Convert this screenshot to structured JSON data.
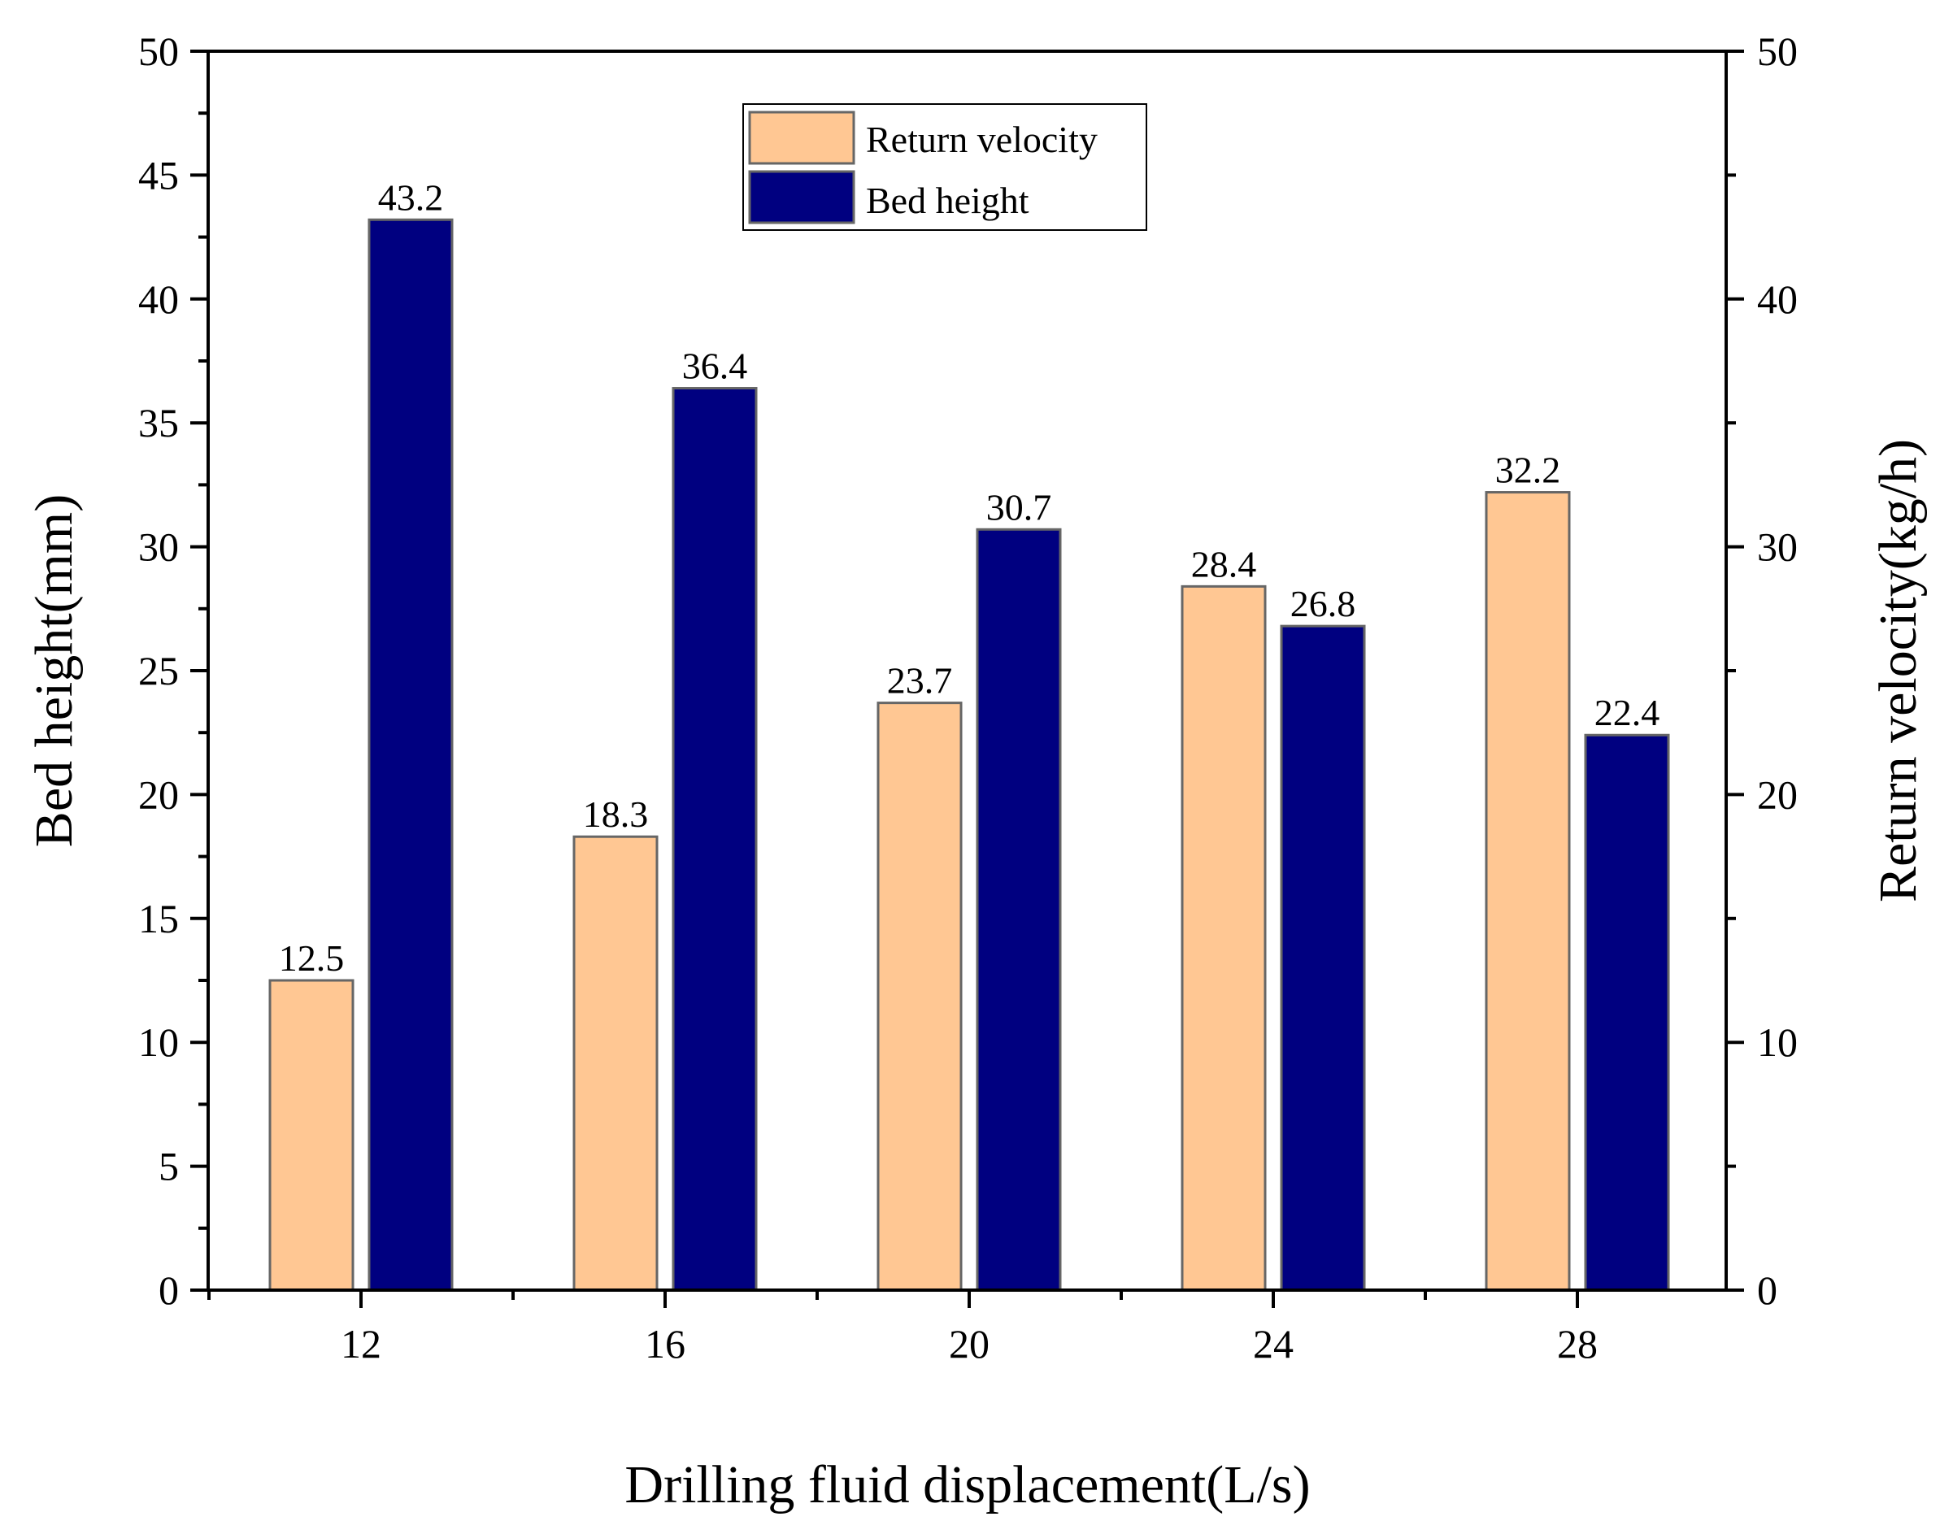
{
  "chart_data": {
    "type": "bar",
    "title": "",
    "xlabel": "Drilling fluid displacement(L/s)",
    "ylabel_left": "Bed height(mm)",
    "ylabel_right": "Return velocity(kg/h)",
    "categories": [
      "12",
      "16",
      "20",
      "24",
      "28"
    ],
    "ylim_left": [
      0,
      50
    ],
    "ylim_right": [
      0,
      50
    ],
    "yticks_left": [
      "0",
      "5",
      "10",
      "15",
      "20",
      "25",
      "30",
      "35",
      "40",
      "45",
      "50"
    ],
    "yticks_right": [
      "0",
      "10",
      "20",
      "30",
      "40",
      "50"
    ],
    "grid": false,
    "legend_position": "top-center",
    "series": [
      {
        "name": "Return velocity",
        "axis": "right",
        "color": "#FFC793",
        "values": [
          12.5,
          18.3,
          23.7,
          28.4,
          32.2
        ],
        "labels": [
          "12.5",
          "18.3",
          "23.7",
          "28.4",
          "32.2"
        ]
      },
      {
        "name": "Bed height",
        "axis": "left",
        "color": "#000080",
        "values": [
          43.2,
          36.4,
          30.7,
          26.8,
          22.4
        ],
        "labels": [
          "43.2",
          "36.4",
          "30.7",
          "26.8",
          "22.4"
        ]
      }
    ]
  }
}
